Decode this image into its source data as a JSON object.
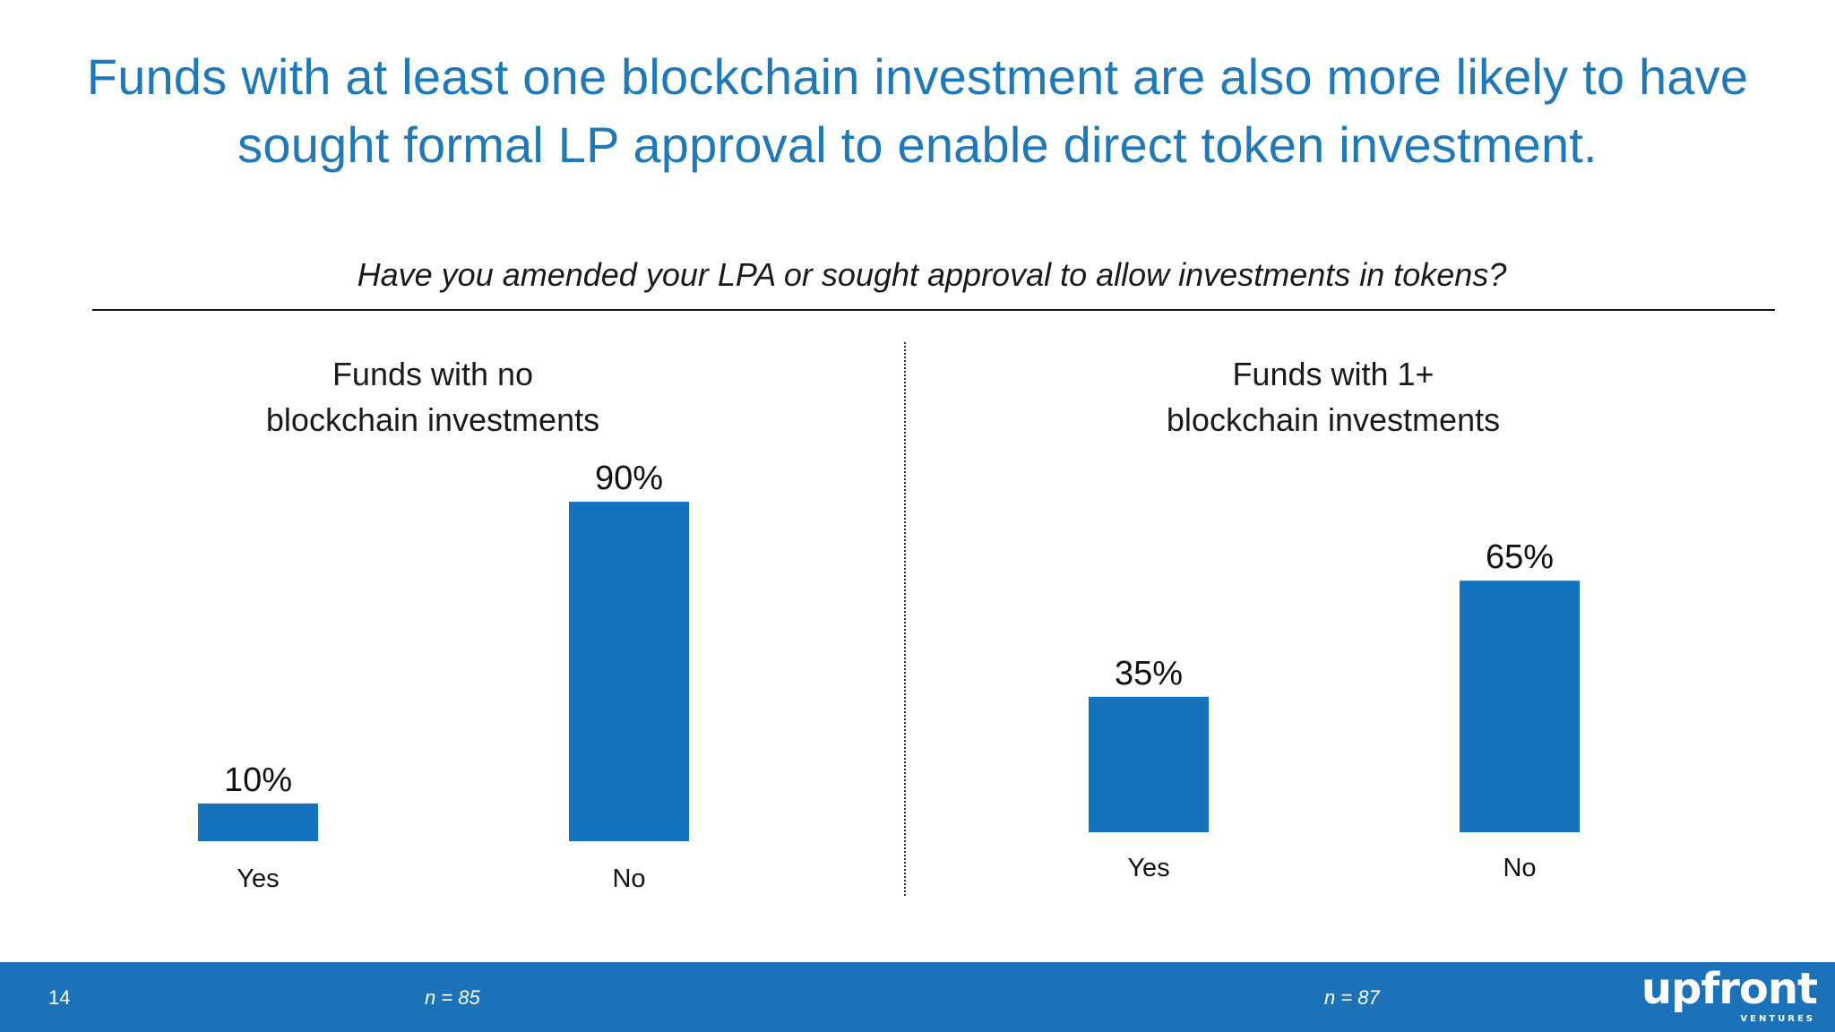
{
  "header": {
    "title_lines": [
      "Funds with at least one blockchain investment are also more likely to have",
      "sought formal LP approval to enable direct token investment."
    ],
    "question": "Have you amended your LPA or sought approval to allow investments in tokens?"
  },
  "colors": {
    "title": "#1f78b8",
    "bar": "#1573bd",
    "footer": "#1c72b8"
  },
  "chart_data": [
    {
      "type": "bar",
      "title_lines": [
        "Funds with no",
        "blockchain investments"
      ],
      "categories": [
        "Yes",
        "No"
      ],
      "values": [
        10,
        90
      ],
      "value_labels": [
        "10%",
        "90%"
      ],
      "unit": "%",
      "ylim": [
        0,
        100
      ],
      "n_label": "n = 85"
    },
    {
      "type": "bar",
      "title_lines": [
        "Funds with 1+",
        "blockchain investments"
      ],
      "categories": [
        "Yes",
        "No"
      ],
      "values": [
        35,
        65
      ],
      "value_labels": [
        "35%",
        "65%"
      ],
      "unit": "%",
      "ylim": [
        0,
        100
      ],
      "n_label": "n = 87"
    }
  ],
  "footer": {
    "page_number": "14",
    "logo_text": "upfront",
    "logo_subtext": "VENTURES"
  }
}
